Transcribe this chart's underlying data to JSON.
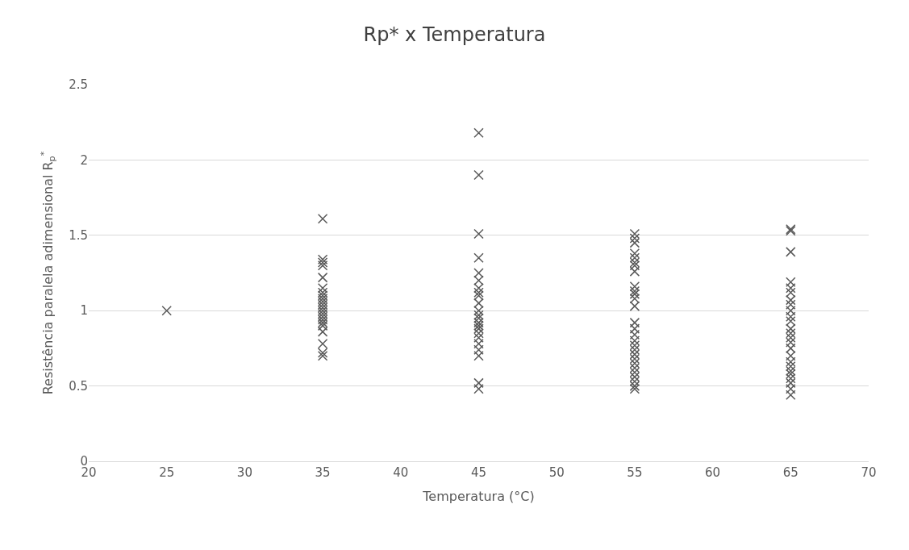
{
  "chart_data": {
    "type": "scatter",
    "title": "Rp* x Temperatura",
    "xlabel": "Temperatura (°C)",
    "ylabel": "Resistência paralela adimensional R$_{p}$$^{*}$",
    "x": [
      25,
      35,
      35,
      35,
      35,
      35,
      35,
      35,
      35,
      35,
      35,
      35,
      35,
      35,
      35,
      35,
      35,
      35,
      35,
      35,
      35,
      35,
      35,
      45,
      45,
      45,
      45,
      45,
      45,
      45,
      45,
      45,
      45,
      45,
      45,
      45,
      45,
      45,
      45,
      45,
      45,
      45,
      45,
      45,
      45,
      45,
      55,
      55,
      55,
      55,
      55,
      55,
      55,
      55,
      55,
      55,
      55,
      55,
      55,
      55,
      55,
      55,
      55,
      55,
      55,
      55,
      55,
      55,
      55,
      55,
      55,
      55,
      55,
      55,
      65,
      65,
      65,
      65,
      65,
      65,
      65,
      65,
      65,
      65,
      65,
      65,
      65,
      65,
      65,
      65,
      65,
      65,
      65,
      65,
      65,
      65,
      65,
      65,
      65
    ],
    "series": [
      {
        "color": "#595959",
        "values": [
          1.0,
          1.61,
          1.34,
          1.32,
          1.3,
          1.22,
          1.15,
          1.12,
          1.1,
          1.08,
          1.06,
          1.04,
          1.02,
          1.0,
          0.98,
          0.96,
          0.94,
          0.92,
          0.9,
          0.86,
          0.78,
          0.72,
          0.7,
          2.18,
          1.9,
          1.51,
          1.35,
          1.25,
          1.2,
          1.15,
          1.12,
          1.1,
          1.05,
          1.0,
          0.97,
          0.95,
          0.92,
          0.9,
          0.88,
          0.85,
          0.82,
          0.78,
          0.74,
          0.7,
          0.52,
          0.48,
          1.51,
          1.48,
          1.45,
          1.38,
          1.35,
          1.32,
          1.3,
          1.26,
          1.16,
          1.13,
          1.11,
          1.08,
          1.03,
          0.92,
          0.88,
          0.84,
          0.8,
          0.77,
          0.74,
          0.71,
          0.68,
          0.65,
          0.62,
          0.59,
          0.56,
          0.53,
          0.5,
          0.48,
          1.54,
          1.53,
          1.39,
          1.19,
          1.15,
          1.12,
          1.07,
          1.04,
          1.0,
          0.96,
          0.93,
          0.88,
          0.85,
          0.82,
          0.79,
          0.75,
          0.7,
          0.66,
          0.63,
          0.6,
          0.58,
          0.55,
          0.52,
          0.48,
          0.44
        ]
      }
    ],
    "xlim": [
      20,
      70
    ],
    "xticks": [
      20,
      25,
      30,
      35,
      40,
      45,
      50,
      55,
      60,
      65,
      70
    ],
    "ylim": [
      0,
      2.5
    ],
    "yticks": [
      0,
      0.5,
      1,
      1.5,
      2,
      2.5
    ],
    "grid": "y",
    "marker": "cross"
  }
}
